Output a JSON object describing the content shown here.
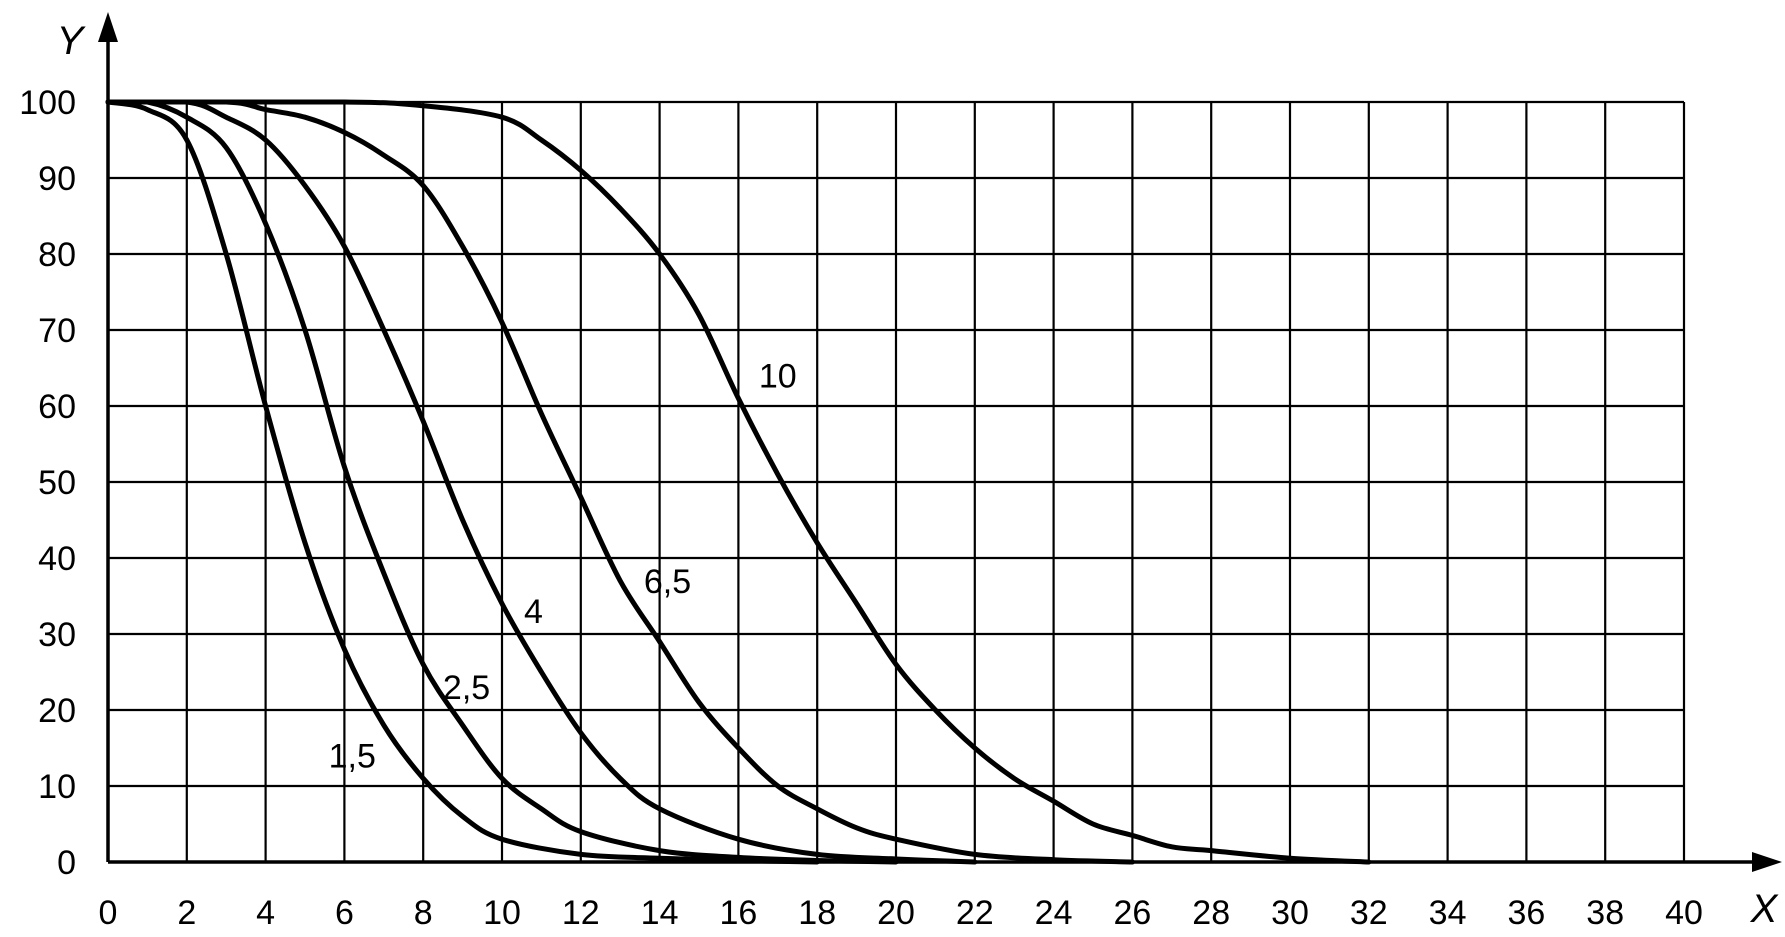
{
  "chart_data": {
    "type": "line",
    "xlabel": "X",
    "ylabel": "Y",
    "xlim": [
      0,
      40
    ],
    "ylim": [
      0,
      100
    ],
    "grid": true,
    "legend": "none",
    "x_ticks": [
      "0",
      "2",
      "4",
      "6",
      "8",
      "10",
      "12",
      "14",
      "16",
      "18",
      "20",
      "22",
      "24",
      "26",
      "28",
      "30",
      "32",
      "34",
      "36",
      "38",
      "40"
    ],
    "y_ticks": [
      "0",
      "10",
      "20",
      "30",
      "40",
      "50",
      "60",
      "70",
      "80",
      "90",
      "100"
    ],
    "series": [
      {
        "name": "1,5",
        "x": [
          0,
          1,
          2,
          3,
          4,
          5,
          6,
          7,
          8,
          9,
          10,
          12,
          14,
          16,
          18
        ],
        "y": [
          100,
          99,
          95,
          80,
          60,
          42,
          28,
          18,
          11,
          6,
          3,
          1,
          0.5,
          0.2,
          0
        ]
      },
      {
        "name": "2,5",
        "x": [
          0,
          1,
          2,
          3,
          4,
          5,
          6,
          7,
          8,
          9,
          10,
          11,
          12,
          14,
          16,
          18,
          20
        ],
        "y": [
          100,
          100,
          98,
          94,
          84,
          70,
          52,
          38,
          26,
          18,
          11,
          7,
          4,
          1.5,
          0.6,
          0.2,
          0
        ]
      },
      {
        "name": "4",
        "x": [
          0,
          2,
          3,
          4,
          5,
          6,
          7,
          8,
          9,
          10,
          11,
          12,
          13,
          14,
          16,
          18,
          20,
          22
        ],
        "y": [
          100,
          100,
          98,
          95,
          89,
          81,
          70,
          58,
          45,
          34,
          25,
          17,
          11,
          7,
          3,
          1,
          0.4,
          0
        ]
      },
      {
        "name": "6,5",
        "x": [
          0,
          3,
          4,
          5,
          6,
          7,
          8,
          9,
          10,
          11,
          12,
          13,
          14,
          15,
          16,
          17,
          18,
          19,
          20,
          22,
          24,
          26
        ],
        "y": [
          100,
          100,
          99,
          98,
          96,
          93,
          89,
          81,
          71,
          59,
          48,
          37,
          29,
          21,
          15,
          10,
          7,
          4.5,
          3,
          1,
          0.3,
          0
        ]
      },
      {
        "name": "10",
        "x": [
          0,
          6,
          8,
          10,
          11,
          12,
          13,
          14,
          15,
          16,
          17,
          18,
          19,
          20,
          21,
          22,
          23,
          24,
          25,
          26,
          27,
          28,
          30,
          32
        ],
        "y": [
          100,
          100,
          99.5,
          98,
          95,
          91,
          86,
          80,
          72,
          61,
          51,
          42,
          34,
          26,
          20,
          15,
          11,
          8,
          5,
          3.5,
          2,
          1.5,
          0.5,
          0
        ]
      }
    ],
    "annotations": [
      {
        "text": "1,5",
        "x": 6.2,
        "y": 14
      },
      {
        "text": "2,5",
        "x": 9.1,
        "y": 23
      },
      {
        "text": "4",
        "x": 10.8,
        "y": 33
      },
      {
        "text": "6,5",
        "x": 14.2,
        "y": 37
      },
      {
        "text": "10",
        "x": 17.0,
        "y": 64
      }
    ]
  }
}
